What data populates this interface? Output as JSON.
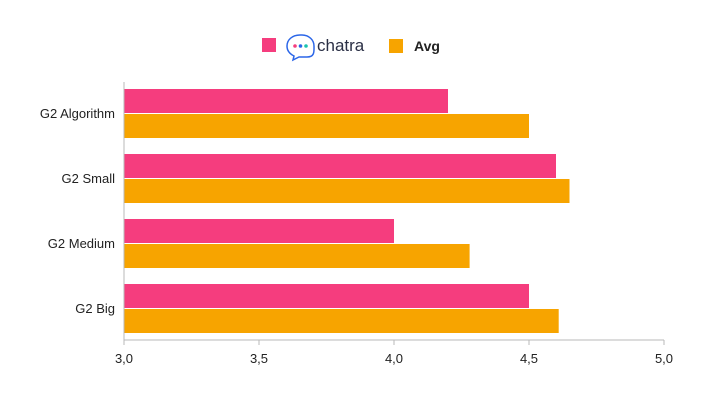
{
  "chart_data": {
    "type": "bar",
    "orientation": "horizontal",
    "categories": [
      "G2 Algorithm",
      "G2 Small",
      "G2 Medium",
      "G2 Big"
    ],
    "series": [
      {
        "name": "chatra",
        "color": "#f53d7e",
        "values": [
          4.2,
          4.6,
          4.0,
          4.5
        ]
      },
      {
        "name": "Avg",
        "color": "#f7a400",
        "values": [
          4.5,
          4.65,
          4.28,
          4.61
        ]
      }
    ],
    "xlim": [
      3.0,
      5.0
    ],
    "xticks": [
      "3,0",
      "3,5",
      "4,0",
      "4,5",
      "5,0"
    ],
    "grid": false,
    "legend": "top-center",
    "legend_logo_icon": "chat-bubble-icon",
    "legend_logo_dot_colors": [
      "#f53d7e",
      "#2b66e8",
      "#19c3b0"
    ]
  }
}
